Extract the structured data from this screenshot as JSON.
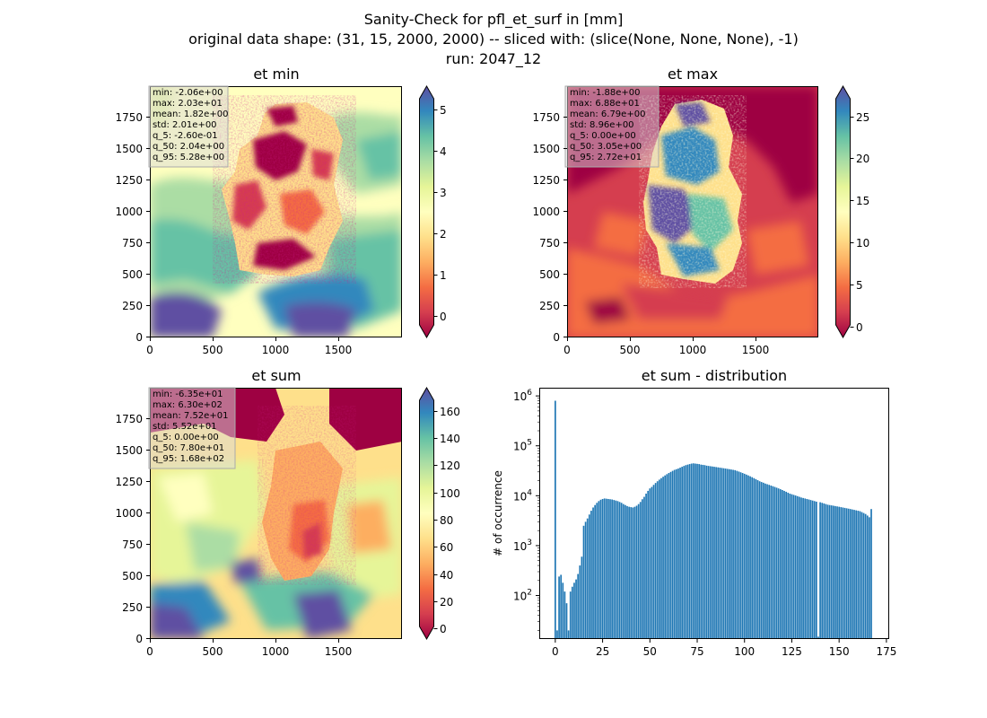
{
  "suptitle": {
    "line1": "Sanity-Check for pfl_et_surf in [mm]",
    "line2": "original data shape: (31, 15, 2000, 2000) -- sliced with: (slice(None, None, None), -1)",
    "line3": "run: 2047_12"
  },
  "panels": [
    {
      "title": "et min",
      "x_ticks": [
        "0",
        "500",
        "1000",
        "1500"
      ],
      "y_ticks": [
        "0",
        "250",
        "500",
        "750",
        "1000",
        "1250",
        "1500",
        "1750"
      ],
      "stats": [
        "min: -2.06e+00",
        "max: 2.03e+01",
        "mean: 1.82e+00",
        "std: 2.01e+00",
        "q_5: -2.60e-01",
        "q_50: 2.04e+00",
        "q_95: 5.28e+00"
      ],
      "colorbar_ticks": [
        "0",
        "1",
        "2",
        "3",
        "4",
        "5"
      ]
    },
    {
      "title": "et max",
      "x_ticks": [
        "0",
        "500",
        "1000",
        "1500"
      ],
      "y_ticks": [
        "0",
        "250",
        "500",
        "750",
        "1000",
        "1250",
        "1500",
        "1750"
      ],
      "stats": [
        "min: -1.88e+00",
        "max: 6.88e+01",
        "mean: 6.79e+00",
        "std: 8.96e+00",
        "q_5: 0.00e+00",
        "q_50: 3.05e+00",
        "q_95: 2.72e+01"
      ],
      "colorbar_ticks": [
        "0",
        "5",
        "10",
        "15",
        "20",
        "25"
      ]
    },
    {
      "title": "et sum",
      "x_ticks": [
        "0",
        "500",
        "1000",
        "1500"
      ],
      "y_ticks": [
        "0",
        "250",
        "500",
        "750",
        "1000",
        "1250",
        "1500",
        "1750"
      ],
      "stats": [
        "min: -6.35e+01",
        "max: 6.30e+02",
        "mean: 7.52e+01",
        "std: 5.52e+01",
        "q_5: 0.00e+00",
        "q_50: 7.80e+01",
        "q_95: 1.68e+02"
      ],
      "colorbar_ticks": [
        "0",
        "20",
        "40",
        "60",
        "80",
        "100",
        "120",
        "140",
        "160"
      ]
    }
  ],
  "colormap": {
    "name": "Spectral",
    "stops": [
      "#9e0142",
      "#d53e4f",
      "#f46d43",
      "#fdae61",
      "#fee08b",
      "#ffffbf",
      "#e6f598",
      "#abdda4",
      "#66c2a5",
      "#3288bd",
      "#5e4fa2"
    ]
  },
  "chart_data": [
    {
      "type": "heatmap",
      "title": "et min",
      "xlim": [
        0,
        2000
      ],
      "ylim": [
        0,
        2000
      ],
      "colorbar_range": [
        -0.4,
        5.4
      ]
    },
    {
      "type": "heatmap",
      "title": "et max",
      "xlim": [
        0,
        2000
      ],
      "ylim": [
        0,
        2000
      ],
      "colorbar_range": [
        -0.5,
        28
      ]
    },
    {
      "type": "heatmap",
      "title": "et sum",
      "xlim": [
        0,
        2000
      ],
      "ylim": [
        0,
        2000
      ],
      "colorbar_range": [
        -4,
        172
      ]
    },
    {
      "type": "bar",
      "title": "et sum - distribution",
      "xlabel": "",
      "ylabel": "# of occurrence",
      "yscale": "log",
      "xlim": [
        -8,
        176
      ],
      "ylim": [
        14,
        1400000
      ],
      "x_ticks": [
        0,
        25,
        50,
        75,
        100,
        125,
        150,
        175
      ],
      "y_ticks": [
        {
          "value": 100,
          "base": "10",
          "exp": "2"
        },
        {
          "value": 1000,
          "base": "10",
          "exp": "3"
        },
        {
          "value": 10000,
          "base": "10",
          "exp": "4"
        },
        {
          "value": 100000,
          "base": "10",
          "exp": "5"
        },
        {
          "value": 1000000,
          "base": "10",
          "exp": "6"
        }
      ],
      "color": "#1f77b4",
      "bar_width": 0.8,
      "bars": [
        [
          0,
          800000
        ],
        [
          1,
          20
        ],
        [
          2,
          240
        ],
        [
          3,
          260
        ],
        [
          4,
          180
        ],
        [
          5,
          120
        ],
        [
          6,
          70
        ],
        [
          7,
          20
        ],
        [
          8,
          120
        ],
        [
          9,
          150
        ],
        [
          10,
          180
        ],
        [
          11,
          210
        ],
        [
          12,
          270
        ],
        [
          13,
          400
        ],
        [
          14,
          600
        ],
        [
          15,
          2500
        ],
        [
          16,
          3000
        ],
        [
          17,
          3500
        ],
        [
          18,
          4200
        ],
        [
          19,
          5000
        ],
        [
          20,
          5800
        ],
        [
          21,
          6500
        ],
        [
          22,
          7200
        ],
        [
          23,
          7800
        ],
        [
          24,
          8300
        ],
        [
          25,
          8600
        ],
        [
          26,
          8800
        ],
        [
          27,
          8700
        ],
        [
          28,
          8600
        ],
        [
          29,
          8500
        ],
        [
          30,
          8400
        ],
        [
          31,
          8200
        ],
        [
          32,
          8000
        ],
        [
          33,
          7800
        ],
        [
          34,
          7500
        ],
        [
          35,
          7200
        ],
        [
          36,
          6800
        ],
        [
          37,
          6500
        ],
        [
          38,
          6200
        ],
        [
          39,
          6000
        ],
        [
          40,
          5900
        ],
        [
          41,
          5800
        ],
        [
          42,
          6000
        ],
        [
          43,
          6300
        ],
        [
          44,
          6800
        ],
        [
          45,
          7500
        ],
        [
          46,
          8500
        ],
        [
          47,
          9500
        ],
        [
          48,
          11000
        ],
        [
          49,
          12500
        ],
        [
          50,
          14000
        ],
        [
          51,
          15000
        ],
        [
          52,
          16500
        ],
        [
          53,
          18000
        ],
        [
          54,
          19500
        ],
        [
          55,
          21000
        ],
        [
          56,
          22500
        ],
        [
          57,
          24000
        ],
        [
          58,
          25500
        ],
        [
          59,
          27000
        ],
        [
          60,
          28500
        ],
        [
          61,
          30000
        ],
        [
          62,
          31500
        ],
        [
          63,
          33000
        ],
        [
          64,
          34000
        ],
        [
          65,
          35000
        ],
        [
          66,
          36500
        ],
        [
          67,
          38000
        ],
        [
          68,
          39500
        ],
        [
          69,
          41000
        ],
        [
          70,
          42000
        ],
        [
          71,
          43000
        ],
        [
          72,
          44000
        ],
        [
          73,
          44500
        ],
        [
          74,
          44000
        ],
        [
          75,
          43500
        ],
        [
          76,
          43000
        ],
        [
          77,
          42000
        ],
        [
          78,
          41500
        ],
        [
          79,
          41000
        ],
        [
          80,
          40000
        ],
        [
          81,
          39500
        ],
        [
          82,
          39000
        ],
        [
          83,
          38500
        ],
        [
          84,
          38000
        ],
        [
          85,
          37500
        ],
        [
          86,
          37000
        ],
        [
          87,
          36500
        ],
        [
          88,
          36000
        ],
        [
          89,
          35500
        ],
        [
          90,
          35000
        ],
        [
          91,
          34500
        ],
        [
          92,
          34000
        ],
        [
          93,
          33500
        ],
        [
          94,
          33000
        ],
        [
          95,
          32500
        ],
        [
          96,
          31500
        ],
        [
          97,
          30500
        ],
        [
          98,
          29500
        ],
        [
          99,
          28500
        ],
        [
          100,
          27500
        ],
        [
          101,
          26500
        ],
        [
          102,
          25500
        ],
        [
          103,
          24500
        ],
        [
          104,
          23500
        ],
        [
          105,
          22500
        ],
        [
          106,
          21500
        ],
        [
          107,
          20500
        ],
        [
          108,
          19500
        ],
        [
          109,
          18800
        ],
        [
          110,
          18200
        ],
        [
          111,
          17500
        ],
        [
          112,
          17000
        ],
        [
          113,
          16500
        ],
        [
          114,
          16000
        ],
        [
          115,
          15500
        ],
        [
          116,
          15000
        ],
        [
          117,
          14500
        ],
        [
          118,
          14000
        ],
        [
          119,
          13500
        ],
        [
          120,
          13000
        ],
        [
          121,
          12500
        ],
        [
          122,
          12000
        ],
        [
          123,
          11500
        ],
        [
          124,
          11000
        ],
        [
          125,
          10700
        ],
        [
          126,
          10400
        ],
        [
          127,
          10100
        ],
        [
          128,
          9800
        ],
        [
          129,
          9500
        ],
        [
          130,
          9200
        ],
        [
          131,
          9000
        ],
        [
          132,
          8800
        ],
        [
          133,
          8600
        ],
        [
          134,
          8400
        ],
        [
          135,
          8200
        ],
        [
          136,
          8000
        ],
        [
          137,
          7800
        ],
        [
          138,
          7600
        ],
        [
          139,
          15
        ],
        [
          140,
          7400
        ],
        [
          141,
          7200
        ],
        [
          142,
          7000
        ],
        [
          143,
          6800
        ],
        [
          144,
          6600
        ],
        [
          145,
          6500
        ],
        [
          146,
          6400
        ],
        [
          147,
          6300
        ],
        [
          148,
          6200
        ],
        [
          149,
          6100
        ],
        [
          150,
          6000
        ],
        [
          151,
          5900
        ],
        [
          152,
          5800
        ],
        [
          153,
          5700
        ],
        [
          154,
          5600
        ],
        [
          155,
          5500
        ],
        [
          156,
          5400
        ],
        [
          157,
          5300
        ],
        [
          158,
          5200
        ],
        [
          159,
          5100
        ],
        [
          160,
          5000
        ],
        [
          161,
          4900
        ],
        [
          162,
          4700
        ],
        [
          163,
          4500
        ],
        [
          164,
          4300
        ],
        [
          165,
          4000
        ],
        [
          166,
          3700
        ],
        [
          167,
          5400
        ]
      ]
    }
  ]
}
